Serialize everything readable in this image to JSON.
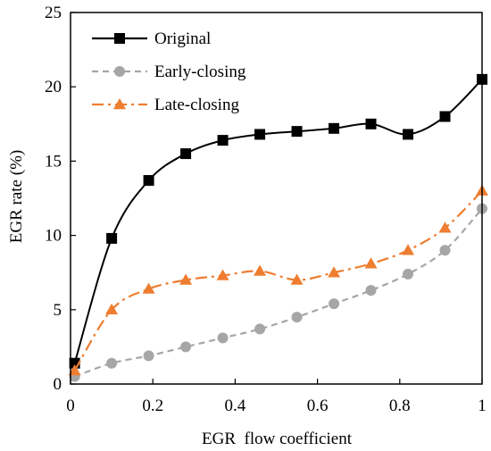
{
  "chart_data": {
    "type": "line",
    "title": "",
    "xlabel": "EGR  flow coefficient",
    "ylabel": "EGR rate (%)",
    "xlim": [
      0,
      1
    ],
    "ylim": [
      0,
      25
    ],
    "xticks": [
      0,
      0.2,
      0.4,
      0.6,
      0.8,
      1
    ],
    "xtick_labels": [
      "0",
      "0.2",
      "0.4",
      "0.6",
      "0.8",
      "1"
    ],
    "yticks": [
      0,
      5,
      10,
      15,
      20,
      25
    ],
    "ytick_labels": [
      "0",
      "5",
      "10",
      "15",
      "20",
      "25"
    ],
    "grid": false,
    "legend_position": "top-left",
    "series": [
      {
        "name": "Original",
        "color": "#000000",
        "line_style": "solid",
        "marker": "square",
        "x": [
          0.01,
          0.1,
          0.19,
          0.28,
          0.37,
          0.46,
          0.55,
          0.64,
          0.73,
          0.82,
          0.91,
          1.0
        ],
        "y": [
          1.4,
          9.8,
          13.7,
          15.5,
          16.4,
          16.8,
          17.0,
          17.2,
          17.5,
          16.8,
          18.0,
          20.5
        ]
      },
      {
        "name": "Early-closing",
        "color": "#a6a6a6",
        "line_style": "dashed",
        "marker": "circle",
        "x": [
          0.01,
          0.1,
          0.19,
          0.28,
          0.37,
          0.46,
          0.55,
          0.64,
          0.73,
          0.82,
          0.91,
          1.0
        ],
        "y": [
          0.5,
          1.4,
          1.9,
          2.5,
          3.1,
          3.7,
          4.5,
          5.4,
          6.3,
          7.4,
          9.0,
          11.8
        ]
      },
      {
        "name": "Late-closing",
        "color": "#ee7d30",
        "line_style": "dash-dot",
        "marker": "triangle",
        "x": [
          0.01,
          0.1,
          0.19,
          0.28,
          0.37,
          0.46,
          0.55,
          0.64,
          0.73,
          0.82,
          0.91,
          1.0
        ],
        "y": [
          0.9,
          5.0,
          6.4,
          7.0,
          7.3,
          7.6,
          7.0,
          7.5,
          8.1,
          9.0,
          10.5,
          13.0
        ]
      }
    ]
  }
}
